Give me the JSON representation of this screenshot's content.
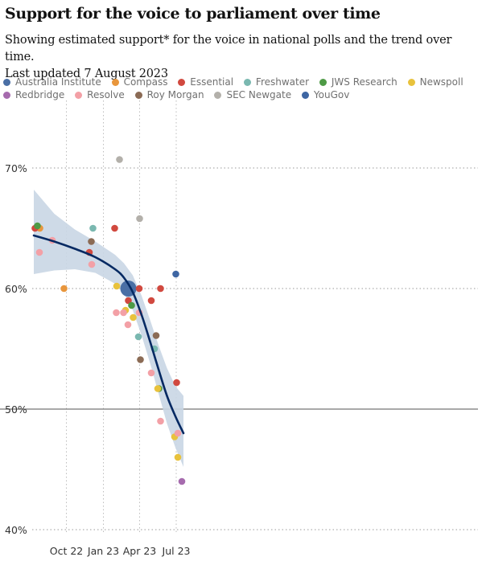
{
  "title": "Support for the voice to parliament over time",
  "subtitle_line1": "Showing estimated support* for the voice in national polls and the trend over time.",
  "subtitle_line2": "Last updated 7 August 2023",
  "legend": [
    {
      "name": "Australia Institute",
      "color": "#4a6fa5"
    },
    {
      "name": "Compass",
      "color": "#e8963c"
    },
    {
      "name": "Essential",
      "color": "#d1493f"
    },
    {
      "name": "Freshwater",
      "color": "#7ab8b0"
    },
    {
      "name": "JWS Research",
      "color": "#4e9a45"
    },
    {
      "name": "Newspoll",
      "color": "#e8c23c"
    },
    {
      "name": "Redbridge",
      "color": "#a66bae"
    },
    {
      "name": "Resolve",
      "color": "#f3a0a6"
    },
    {
      "name": "Roy Morgan",
      "color": "#8b6b55"
    },
    {
      "name": "SEC Newgate",
      "color": "#b3b0aa"
    },
    {
      "name": "YouGov",
      "color": "#3e66a3"
    }
  ],
  "chart_data": {
    "type": "scatter",
    "x_ticks": [
      "Oct 22",
      "Jan 23",
      "Apr 23",
      "Jul 23"
    ],
    "y_ticks": [
      "40%",
      "50%",
      "60%",
      "70%"
    ],
    "ylim": [
      40,
      74
    ],
    "series": [
      {
        "name": "Australia Institute",
        "points": [
          [
            "2023-03-04",
            60
          ]
        ]
      },
      {
        "name": "Compass",
        "points": [
          [
            "2022-07-27",
            65
          ],
          [
            "2022-09-25",
            60
          ]
        ]
      },
      {
        "name": "Essential",
        "points": [
          [
            "2022-07-15",
            65
          ],
          [
            "2022-11-27",
            63
          ],
          [
            "2023-01-29",
            65
          ],
          [
            "2023-03-04",
            59
          ],
          [
            "2023-03-31",
            60
          ],
          [
            "2023-04-30",
            59
          ],
          [
            "2023-05-23",
            60
          ],
          [
            "2023-07-02",
            52.2
          ]
        ]
      },
      {
        "name": "Freshwater",
        "points": [
          [
            "2022-12-06",
            65
          ],
          [
            "2023-03-29",
            56
          ],
          [
            "2023-05-08",
            55
          ]
        ]
      },
      {
        "name": "JWS Research",
        "points": [
          [
            "2022-07-21",
            65.2
          ],
          [
            "2023-03-12",
            58.6
          ],
          [
            "2023-05-19",
            51.7
          ]
        ]
      },
      {
        "name": "Newspoll",
        "points": [
          [
            "2023-02-03",
            60.2
          ],
          [
            "2023-02-25",
            58.2
          ],
          [
            "2023-03-16",
            57.6
          ],
          [
            "2023-05-16",
            51.7
          ],
          [
            "2023-06-27",
            47.7
          ],
          [
            "2023-07-05",
            46
          ]
        ]
      },
      {
        "name": "Redbridge",
        "points": [
          [
            "2023-07-15",
            44
          ]
        ]
      },
      {
        "name": "Resolve",
        "points": [
          [
            "2022-07-26",
            63
          ],
          [
            "2022-08-27",
            64
          ],
          [
            "2022-12-03",
            62
          ],
          [
            "2023-01-33",
            58
          ],
          [
            "2023-02-20",
            58
          ],
          [
            "2023-03-03",
            57
          ],
          [
            "2023-03-31",
            58
          ],
          [
            "2023-04-30",
            53
          ],
          [
            "2023-05-23",
            49
          ],
          [
            "2023-07-05",
            48
          ]
        ]
      },
      {
        "name": "Roy Morgan",
        "points": [
          [
            "2022-12-02",
            63.9
          ],
          [
            "2023-04-03",
            54.1
          ],
          [
            "2023-05-12",
            56.1
          ]
        ]
      },
      {
        "name": "SEC Newgate",
        "points": [
          [
            "2023-02-10",
            70.7
          ],
          [
            "2023-04-01",
            65.8
          ]
        ]
      },
      {
        "name": "YouGov",
        "points": [
          [
            "2023-06-30",
            61.2
          ]
        ]
      }
    ],
    "trend": [
      [
        "2022-07-12",
        64.4
      ],
      [
        "2022-09-01",
        63.9
      ],
      [
        "2022-10-22",
        63.3
      ],
      [
        "2022-12-12",
        62.6
      ],
      [
        "2023-01-30",
        61.6
      ],
      [
        "2023-02-21",
        60.9
      ],
      [
        "2023-03-15",
        59.7
      ],
      [
        "2023-04-06",
        57.8
      ],
      [
        "2023-04-28",
        55.5
      ],
      [
        "2023-05-18",
        53.3
      ],
      [
        "2023-06-08",
        51.1
      ],
      [
        "2023-06-29",
        49.4
      ],
      [
        "2023-07-19",
        48
      ]
    ],
    "band_upper": [
      [
        "2022-07-12",
        68.2
      ],
      [
        "2022-09-01",
        66.2
      ],
      [
        "2022-10-22",
        64.9
      ],
      [
        "2022-12-12",
        63.9
      ],
      [
        "2023-01-30",
        62.8
      ],
      [
        "2023-02-21",
        62.1
      ],
      [
        "2023-03-15",
        61.1
      ],
      [
        "2023-04-06",
        59.4
      ],
      [
        "2023-04-28",
        57.3
      ],
      [
        "2023-05-18",
        55.3
      ],
      [
        "2023-06-08",
        53.4
      ],
      [
        "2023-06-29",
        51.9
      ],
      [
        "2023-07-19",
        51.1
      ]
    ],
    "band_lower": [
      [
        "2022-07-12",
        61.2
      ],
      [
        "2022-09-01",
        61.5
      ],
      [
        "2022-10-22",
        61.6
      ],
      [
        "2022-12-12",
        61.3
      ],
      [
        "2023-01-30",
        60.4
      ],
      [
        "2023-02-21",
        59.6
      ],
      [
        "2023-03-15",
        58.2
      ],
      [
        "2023-04-06",
        56.1
      ],
      [
        "2023-04-28",
        53.7
      ],
      [
        "2023-05-18",
        51.3
      ],
      [
        "2023-06-08",
        48.8
      ],
      [
        "2023-06-29",
        46.8
      ],
      [
        "2023-07-19",
        45.2
      ]
    ],
    "grid": true,
    "legend_position": "top"
  }
}
